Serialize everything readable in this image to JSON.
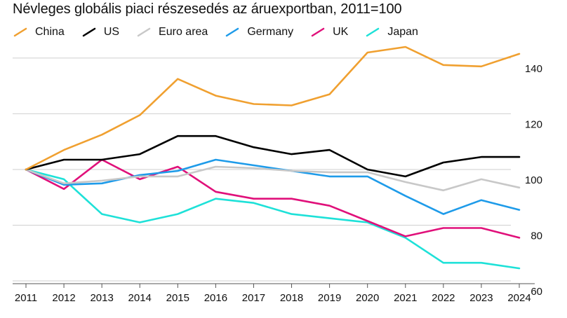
{
  "chart_data": {
    "type": "line",
    "title": "Névleges globális piaci részesedés az áruexportban, 2011=100",
    "xlabel": "",
    "ylabel": "",
    "x": [
      "2011",
      "2012",
      "2013",
      "2014",
      "2015",
      "2016",
      "2017",
      "2018",
      "2019",
      "2020",
      "2021",
      "2022",
      "2023",
      "2024"
    ],
    "yticks": [
      60,
      80,
      100,
      120,
      140
    ],
    "ylim": [
      59,
      144
    ],
    "grid": true,
    "legend_position": "top-left",
    "series": [
      {
        "name": "China",
        "color": "#f0a030",
        "values": [
          100,
          107,
          112.5,
          119.5,
          132.5,
          126.5,
          123.5,
          123,
          127,
          142,
          144,
          137.5,
          137,
          141.5
        ]
      },
      {
        "name": "US",
        "color": "#000000",
        "values": [
          100,
          103.5,
          103.5,
          105.5,
          112,
          112,
          108,
          105.5,
          107,
          100,
          97.5,
          102.5,
          104.5,
          104.5
        ]
      },
      {
        "name": "Euro area",
        "color": "#c8c8c8",
        "values": [
          100,
          95,
          96,
          97.5,
          97.5,
          101,
          100.5,
          99.5,
          99,
          99,
          95.5,
          92.5,
          96.5,
          93.5
        ]
      },
      {
        "name": "Germany",
        "color": "#1e9be9",
        "values": [
          100,
          94.5,
          95,
          98,
          99.5,
          103.5,
          101.5,
          99.5,
          97.5,
          97.5,
          90.5,
          84,
          89,
          85.5
        ]
      },
      {
        "name": "UK",
        "color": "#e0107a",
        "values": [
          100,
          93,
          103.5,
          96.5,
          101,
          92,
          89.5,
          89.5,
          87,
          81.5,
          76,
          79,
          79,
          75.5
        ]
      },
      {
        "name": "Japan",
        "color": "#1ee1d8",
        "values": [
          100,
          96.5,
          84,
          81,
          84,
          89.5,
          88,
          84,
          82.5,
          81,
          75.5,
          66.5,
          66.5,
          64.5
        ]
      }
    ]
  }
}
